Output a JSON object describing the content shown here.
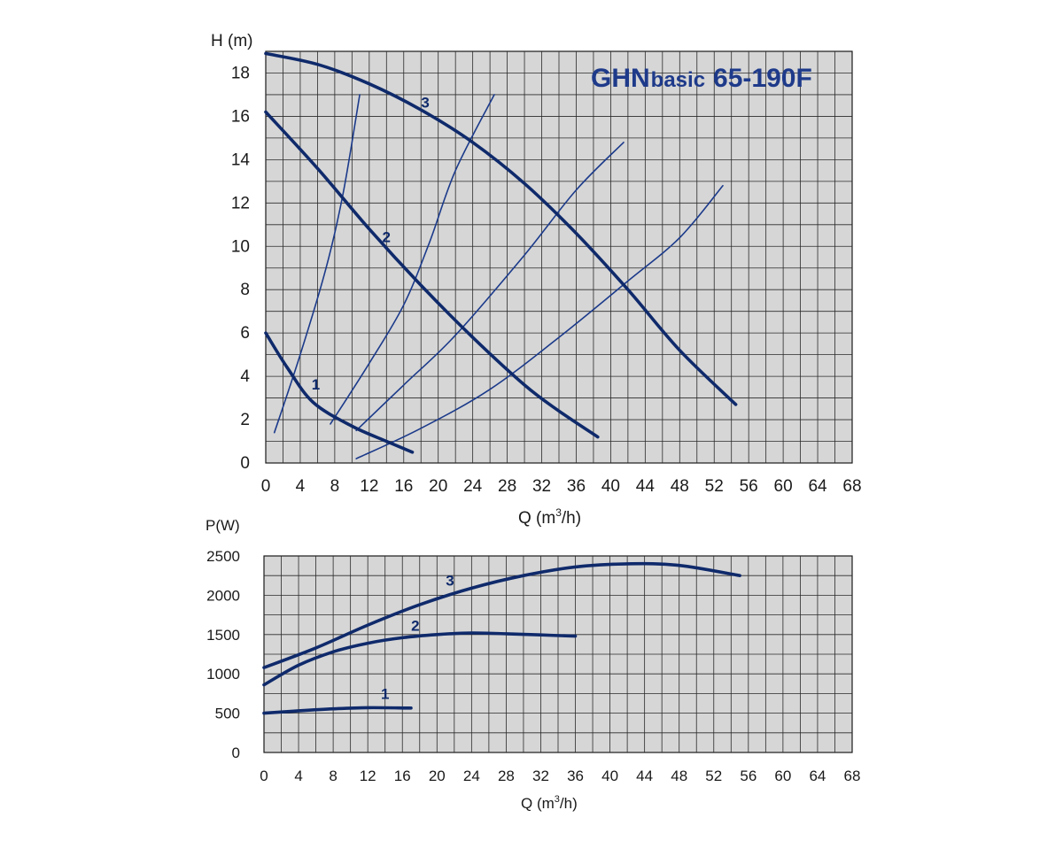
{
  "chart_data": [
    {
      "type": "line",
      "title": {
        "brand": "GHN",
        "model_type": "basic",
        "model": "65-190F"
      },
      "xlabel": {
        "text": "Q (m",
        "sup": "3",
        "tail": "/h)"
      },
      "ylabel": "H (m)",
      "xlim": [
        0,
        68
      ],
      "ylim": [
        0,
        19
      ],
      "x_ticks": [
        "0",
        "4",
        "8",
        "12",
        "16",
        "20",
        "24",
        "28",
        "32",
        "36",
        "40",
        "44",
        "48",
        "52",
        "56",
        "60",
        "64",
        "68"
      ],
      "y_ticks": [
        "0",
        "2",
        "4",
        "6",
        "8",
        "10",
        "12",
        "14",
        "16",
        "18"
      ],
      "grid": true,
      "series": [
        {
          "name": "1",
          "label_at": [
            5.8,
            3.4
          ],
          "points": [
            [
              0,
              6.0
            ],
            [
              2.5,
              4.4
            ],
            [
              5.5,
              2.8
            ],
            [
              10,
              1.7
            ],
            [
              14,
              1.0
            ],
            [
              17,
              0.5
            ]
          ]
        },
        {
          "name": "2",
          "label_at": [
            14,
            10.2
          ],
          "points": [
            [
              0,
              16.2
            ],
            [
              6,
              13.6
            ],
            [
              12,
              10.8
            ],
            [
              18,
              8.2
            ],
            [
              24,
              5.8
            ],
            [
              30,
              3.6
            ],
            [
              34,
              2.4
            ],
            [
              38.5,
              1.2
            ]
          ]
        },
        {
          "name": "3",
          "label_at": [
            18.5,
            16.4
          ],
          "points": [
            [
              0,
              18.9
            ],
            [
              6,
              18.4
            ],
            [
              12,
              17.5
            ],
            [
              18,
              16.3
            ],
            [
              24,
              14.8
            ],
            [
              30,
              12.9
            ],
            [
              36,
              10.6
            ],
            [
              42,
              8.0
            ],
            [
              48,
              5.2
            ],
            [
              54.5,
              2.7
            ]
          ]
        }
      ],
      "system_curves": [
        {
          "points": [
            [
              1,
              1.4
            ],
            [
              4,
              5
            ],
            [
              7,
              9
            ],
            [
              9,
              12.5
            ],
            [
              10.9,
              17
            ]
          ]
        },
        {
          "points": [
            [
              7.5,
              1.8
            ],
            [
              12,
              4.6
            ],
            [
              16,
              7.3
            ],
            [
              19,
              10.2
            ],
            [
              22,
              13.5
            ],
            [
              26.5,
              17
            ]
          ]
        },
        {
          "points": [
            [
              10.5,
              1.5
            ],
            [
              16,
              3.6
            ],
            [
              22,
              5.9
            ],
            [
              30,
              9.6
            ],
            [
              36,
              12.6
            ],
            [
              41.5,
              14.8
            ]
          ]
        },
        {
          "points": [
            [
              10.5,
              0.2
            ],
            [
              18,
              1.6
            ],
            [
              26,
              3.4
            ],
            [
              34,
              5.8
            ],
            [
              42,
              8.4
            ],
            [
              48,
              10.4
            ],
            [
              53,
              12.8
            ]
          ]
        }
      ]
    },
    {
      "type": "line",
      "xlabel": {
        "text": "Q (m",
        "sup": "3",
        "tail": "/h)"
      },
      "ylabel": "P(W)",
      "xlim": [
        0,
        68
      ],
      "ylim": [
        0,
        2500
      ],
      "x_ticks": [
        "0",
        "4",
        "8",
        "12",
        "16",
        "20",
        "24",
        "28",
        "32",
        "36",
        "40",
        "44",
        "48",
        "52",
        "56",
        "60",
        "64",
        "68"
      ],
      "y_ticks": [
        "0",
        "500",
        "1000",
        "1500",
        "2000",
        "2500"
      ],
      "grid": true,
      "series": [
        {
          "name": "1",
          "label_at": [
            14,
            680
          ],
          "points": [
            [
              0,
              500
            ],
            [
              4,
              530
            ],
            [
              8,
              555
            ],
            [
              12,
              570
            ],
            [
              17,
              565
            ]
          ]
        },
        {
          "name": "2",
          "label_at": [
            17.5,
            1550
          ],
          "points": [
            [
              0,
              860
            ],
            [
              4,
              1110
            ],
            [
              8,
              1280
            ],
            [
              12,
              1390
            ],
            [
              16,
              1460
            ],
            [
              20,
              1500
            ],
            [
              24,
              1520
            ],
            [
              28,
              1510
            ],
            [
              32,
              1495
            ],
            [
              36,
              1480
            ]
          ]
        },
        {
          "name": "3",
          "label_at": [
            21.5,
            2120
          ],
          "points": [
            [
              0,
              1080
            ],
            [
              6,
              1330
            ],
            [
              12,
              1620
            ],
            [
              18,
              1880
            ],
            [
              24,
              2090
            ],
            [
              30,
              2250
            ],
            [
              36,
              2360
            ],
            [
              42,
              2400
            ],
            [
              48,
              2380
            ],
            [
              55,
              2250
            ]
          ]
        }
      ]
    }
  ]
}
